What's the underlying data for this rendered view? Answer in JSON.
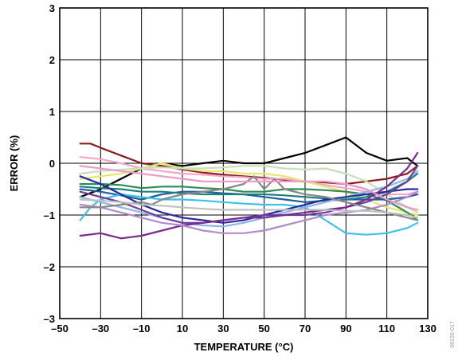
{
  "chart_data": {
    "type": "line",
    "title": "",
    "xlabel": "TEMPERATURE (°C)",
    "ylabel": "ERROR (%)",
    "xlim": [
      -50,
      130
    ],
    "ylim": [
      -3,
      3
    ],
    "x_ticks": [
      -50,
      -30,
      -10,
      10,
      30,
      50,
      70,
      90,
      110,
      130
    ],
    "x_tick_labels": [
      "–50",
      "–30",
      "–10",
      "10",
      "30",
      "50",
      "70",
      "90",
      "110",
      "130"
    ],
    "y_ticks": [
      3,
      2,
      1,
      0,
      -1,
      -2,
      -3
    ],
    "y_tick_labels": [
      "3",
      "2",
      "1",
      "0",
      "–1",
      "–2",
      "–3"
    ],
    "grid": true,
    "legend": "none",
    "figure_id": "08155-017",
    "series": [
      {
        "color": "#000000",
        "x": [
          -40,
          -30,
          -20,
          -10,
          0,
          10,
          20,
          30,
          40,
          50,
          60,
          70,
          80,
          90,
          100,
          110,
          120,
          125
        ],
        "y": [
          -0.65,
          -0.5,
          -0.3,
          -0.1,
          0.0,
          -0.05,
          0.0,
          0.05,
          0.0,
          0.0,
          0.1,
          0.2,
          0.35,
          0.5,
          0.2,
          0.05,
          0.1,
          -0.05
        ]
      },
      {
        "color": "#8b1a1a",
        "x": [
          -40,
          -35,
          -30,
          -20,
          -10,
          0,
          10,
          20,
          30,
          40,
          50,
          60,
          70,
          80,
          90,
          100,
          110,
          120,
          125
        ],
        "y": [
          0.38,
          0.38,
          0.3,
          0.15,
          0.0,
          -0.05,
          -0.12,
          -0.18,
          -0.22,
          -0.25,
          -0.28,
          -0.32,
          -0.35,
          -0.37,
          -0.4,
          -0.35,
          -0.3,
          -0.2,
          -0.05
        ]
      },
      {
        "color": "#f4a6c8",
        "x": [
          -40,
          -30,
          -20,
          -10,
          0,
          10,
          20,
          30,
          40,
          50,
          60,
          70,
          80,
          90,
          100,
          110,
          120,
          125
        ],
        "y": [
          0.12,
          0.08,
          0.0,
          -0.1,
          -0.15,
          -0.2,
          -0.22,
          -0.25,
          -0.27,
          -0.3,
          -0.3,
          -0.35,
          -0.42,
          -0.48,
          -0.55,
          -0.6,
          -0.6,
          -0.55
        ]
      },
      {
        "color": "#e6e66e",
        "x": [
          -40,
          -30,
          -20,
          -10,
          0,
          10,
          20,
          30,
          40,
          50,
          60,
          70,
          80,
          90,
          100,
          110,
          120,
          125
        ],
        "y": [
          -0.3,
          -0.25,
          -0.2,
          -0.1,
          0.0,
          -0.1,
          -0.15,
          -0.15,
          -0.2,
          -0.2,
          -0.25,
          -0.35,
          -0.45,
          -0.55,
          -0.7,
          -0.85,
          -0.95,
          -1.0
        ]
      },
      {
        "color": "#c8e0b8",
        "x": [
          -40,
          -30,
          -20,
          -10,
          0,
          10,
          20,
          30,
          40,
          50,
          60,
          70,
          80,
          90,
          100,
          110,
          120,
          125
        ],
        "y": [
          -0.2,
          -0.15,
          -0.12,
          -0.1,
          -0.08,
          -0.1,
          -0.1,
          -0.08,
          -0.05,
          -0.05,
          -0.1,
          -0.12,
          -0.1,
          -0.2,
          -0.35,
          -0.6,
          -0.85,
          -0.95
        ]
      },
      {
        "color": "#2e8b57",
        "x": [
          -40,
          -30,
          -20,
          -10,
          0,
          10,
          20,
          30,
          40,
          50,
          60,
          70,
          80,
          90,
          100,
          110,
          120,
          125
        ],
        "y": [
          -0.4,
          -0.4,
          -0.42,
          -0.48,
          -0.45,
          -0.45,
          -0.48,
          -0.5,
          -0.55,
          -0.55,
          -0.5,
          -0.5,
          -0.52,
          -0.55,
          -0.6,
          -0.72,
          -0.95,
          -1.1
        ]
      },
      {
        "color": "#1f5fa0",
        "x": [
          -40,
          -30,
          -20,
          -10,
          0,
          10,
          20,
          30,
          40,
          50,
          60,
          70,
          80,
          90,
          100,
          110,
          120,
          125
        ],
        "y": [
          -0.5,
          -0.55,
          -0.62,
          -0.7,
          -0.6,
          -0.55,
          -0.55,
          -0.58,
          -0.6,
          -0.65,
          -0.7,
          -0.75,
          -0.72,
          -0.7,
          -0.7,
          -0.7,
          -0.65,
          -0.6
        ]
      },
      {
        "color": "#1b7f7f",
        "x": [
          -40,
          -30,
          -20,
          -10,
          0,
          10,
          20,
          30,
          40,
          50,
          60,
          70,
          80,
          90,
          100,
          110,
          120,
          125
        ],
        "y": [
          -0.45,
          -0.48,
          -0.5,
          -0.55,
          -0.55,
          -0.58,
          -0.6,
          -0.6,
          -0.6,
          -0.6,
          -0.62,
          -0.65,
          -0.68,
          -0.7,
          -0.65,
          -0.55,
          -0.35,
          -0.2
        ]
      },
      {
        "color": "#3ec1e8",
        "x": [
          -40,
          -35,
          -30,
          -20,
          -10,
          0,
          10,
          20,
          30,
          40,
          50,
          60,
          70,
          80,
          90,
          100,
          110,
          120,
          125
        ],
        "y": [
          -1.1,
          -0.85,
          -0.7,
          -0.6,
          -0.65,
          -0.7,
          -0.7,
          -0.72,
          -0.75,
          -0.78,
          -0.8,
          -0.8,
          -0.85,
          -1.1,
          -1.35,
          -1.38,
          -1.35,
          -1.25,
          -1.15
        ]
      },
      {
        "color": "#8db6e8",
        "x": [
          -40,
          -30,
          -20,
          -10,
          0,
          10,
          20,
          30,
          40,
          50,
          60,
          70,
          80,
          90,
          100,
          110,
          120,
          125
        ],
        "y": [
          -0.65,
          -0.75,
          -0.85,
          -0.95,
          -1.05,
          -1.15,
          -1.2,
          -1.22,
          -1.15,
          -1.05,
          -0.95,
          -0.85,
          -0.75,
          -0.65,
          -0.55,
          -0.45,
          -0.3,
          -0.15
        ]
      },
      {
        "color": "#2a2aa0",
        "x": [
          -40,
          -30,
          -20,
          -10,
          0,
          10,
          20,
          30,
          40,
          50,
          60,
          70,
          80,
          90,
          100,
          110,
          120,
          125
        ],
        "y": [
          -0.25,
          -0.4,
          -0.6,
          -0.8,
          -0.95,
          -1.05,
          -1.1,
          -1.15,
          -1.1,
          -1.0,
          -0.9,
          -0.8,
          -0.7,
          -0.65,
          -0.6,
          -0.55,
          -0.5,
          -0.5
        ]
      },
      {
        "color": "#6a3d9a",
        "x": [
          -40,
          -30,
          -20,
          -10,
          0,
          10,
          20,
          30,
          40,
          50,
          60,
          70,
          80,
          90,
          100,
          110,
          120,
          125
        ],
        "y": [
          -0.55,
          -0.65,
          -0.75,
          -0.9,
          -1.05,
          -1.15,
          -1.15,
          -1.1,
          -1.05,
          -1.0,
          -1.0,
          -1.0,
          -0.95,
          -0.85,
          -0.75,
          -0.6,
          -0.35,
          -0.05
        ]
      },
      {
        "color": "#7b2a8e",
        "x": [
          -40,
          -30,
          -20,
          -10,
          0,
          10,
          20,
          30,
          40,
          50,
          60,
          70,
          80,
          90,
          100,
          110,
          120,
          125
        ],
        "y": [
          -1.4,
          -1.35,
          -1.45,
          -1.4,
          -1.3,
          -1.2,
          -1.15,
          -1.1,
          -1.05,
          -1.05,
          -1.0,
          -0.95,
          -0.9,
          -0.85,
          -0.7,
          -0.45,
          -0.1,
          0.2
        ]
      },
      {
        "color": "#b08ccf",
        "x": [
          -40,
          -30,
          -20,
          -10,
          0,
          10,
          20,
          30,
          40,
          50,
          60,
          70,
          80,
          90,
          100,
          110,
          120,
          125
        ],
        "y": [
          -0.8,
          -0.85,
          -0.95,
          -1.05,
          -1.15,
          -1.2,
          -1.3,
          -1.35,
          -1.35,
          -1.3,
          -1.2,
          -1.1,
          -1.0,
          -0.95,
          -0.9,
          -0.8,
          -0.65,
          -0.55
        ]
      },
      {
        "color": "#888888",
        "x": [
          -40,
          -30,
          -20,
          -10,
          -5,
          0,
          10,
          20,
          30,
          40,
          45,
          50,
          55,
          60,
          70,
          80,
          90,
          100,
          110,
          120,
          125
        ],
        "y": [
          -0.85,
          -0.85,
          -0.8,
          -0.75,
          -0.8,
          -0.7,
          -0.6,
          -0.55,
          -0.5,
          -0.4,
          -0.25,
          -0.5,
          -0.3,
          -0.5,
          -0.6,
          -0.65,
          -0.75,
          -0.85,
          -0.95,
          -1.05,
          -1.1
        ]
      },
      {
        "color": "#e89ac8",
        "x": [
          -40,
          -30,
          -20,
          -10,
          0,
          10,
          20,
          30,
          40,
          50,
          60,
          70,
          80,
          90,
          100,
          110,
          120,
          125
        ],
        "y": [
          -0.05,
          -0.1,
          -0.15,
          -0.2,
          -0.25,
          -0.3,
          -0.35,
          -0.35,
          -0.35,
          -0.35,
          -0.35,
          -0.35,
          -0.35,
          -0.4,
          -0.5,
          -0.7,
          -0.85,
          -0.9
        ]
      },
      {
        "color": "#c0c0c0",
        "x": [
          -40,
          -30,
          -20,
          -10,
          0,
          10,
          20,
          30,
          40,
          50,
          60,
          70,
          80,
          90,
          100,
          110,
          120,
          125
        ],
        "y": [
          -0.7,
          -0.72,
          -0.75,
          -0.8,
          -0.82,
          -0.85,
          -0.88,
          -0.9,
          -0.9,
          -0.9,
          -0.9,
          -0.9,
          -0.9,
          -0.92,
          -0.92,
          -0.95,
          -1.0,
          -1.05
        ]
      }
    ]
  }
}
